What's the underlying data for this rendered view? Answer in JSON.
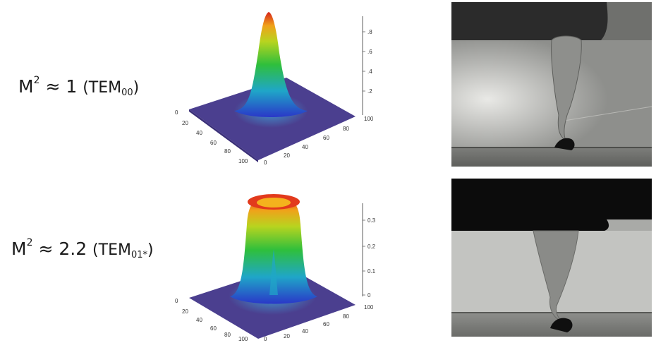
{
  "rows": [
    {
      "label": {
        "m": "M",
        "sup": "2",
        "approx": " ≈ 1 ",
        "paren_open": "(TEM",
        "sub": "00",
        "paren_close": ")"
      },
      "plot": {
        "z_ticks": [
          ".8",
          ".6",
          ".4",
          ".2"
        ],
        "x_ticks": [
          "0",
          "20",
          "40",
          "60",
          "80",
          "100"
        ],
        "y_ticks": [
          "100",
          "80",
          "60",
          "40",
          "20",
          "0"
        ]
      }
    },
    {
      "label": {
        "m": "M",
        "sup": "2",
        "approx": " ≈ 2.2 ",
        "paren_open": "(TEM",
        "sub": "01*",
        "paren_close": ")"
      },
      "plot": {
        "z_ticks": [
          "0.3",
          "0.2",
          "0.1",
          "0"
        ],
        "x_ticks": [
          "0",
          "20",
          "40",
          "60",
          "80",
          "100"
        ],
        "y_ticks": [
          "100",
          "80",
          "60",
          "40",
          "20",
          "0"
        ]
      }
    }
  ],
  "colors": {
    "base": "#4b3f8f",
    "peak": "#d62a1a"
  }
}
